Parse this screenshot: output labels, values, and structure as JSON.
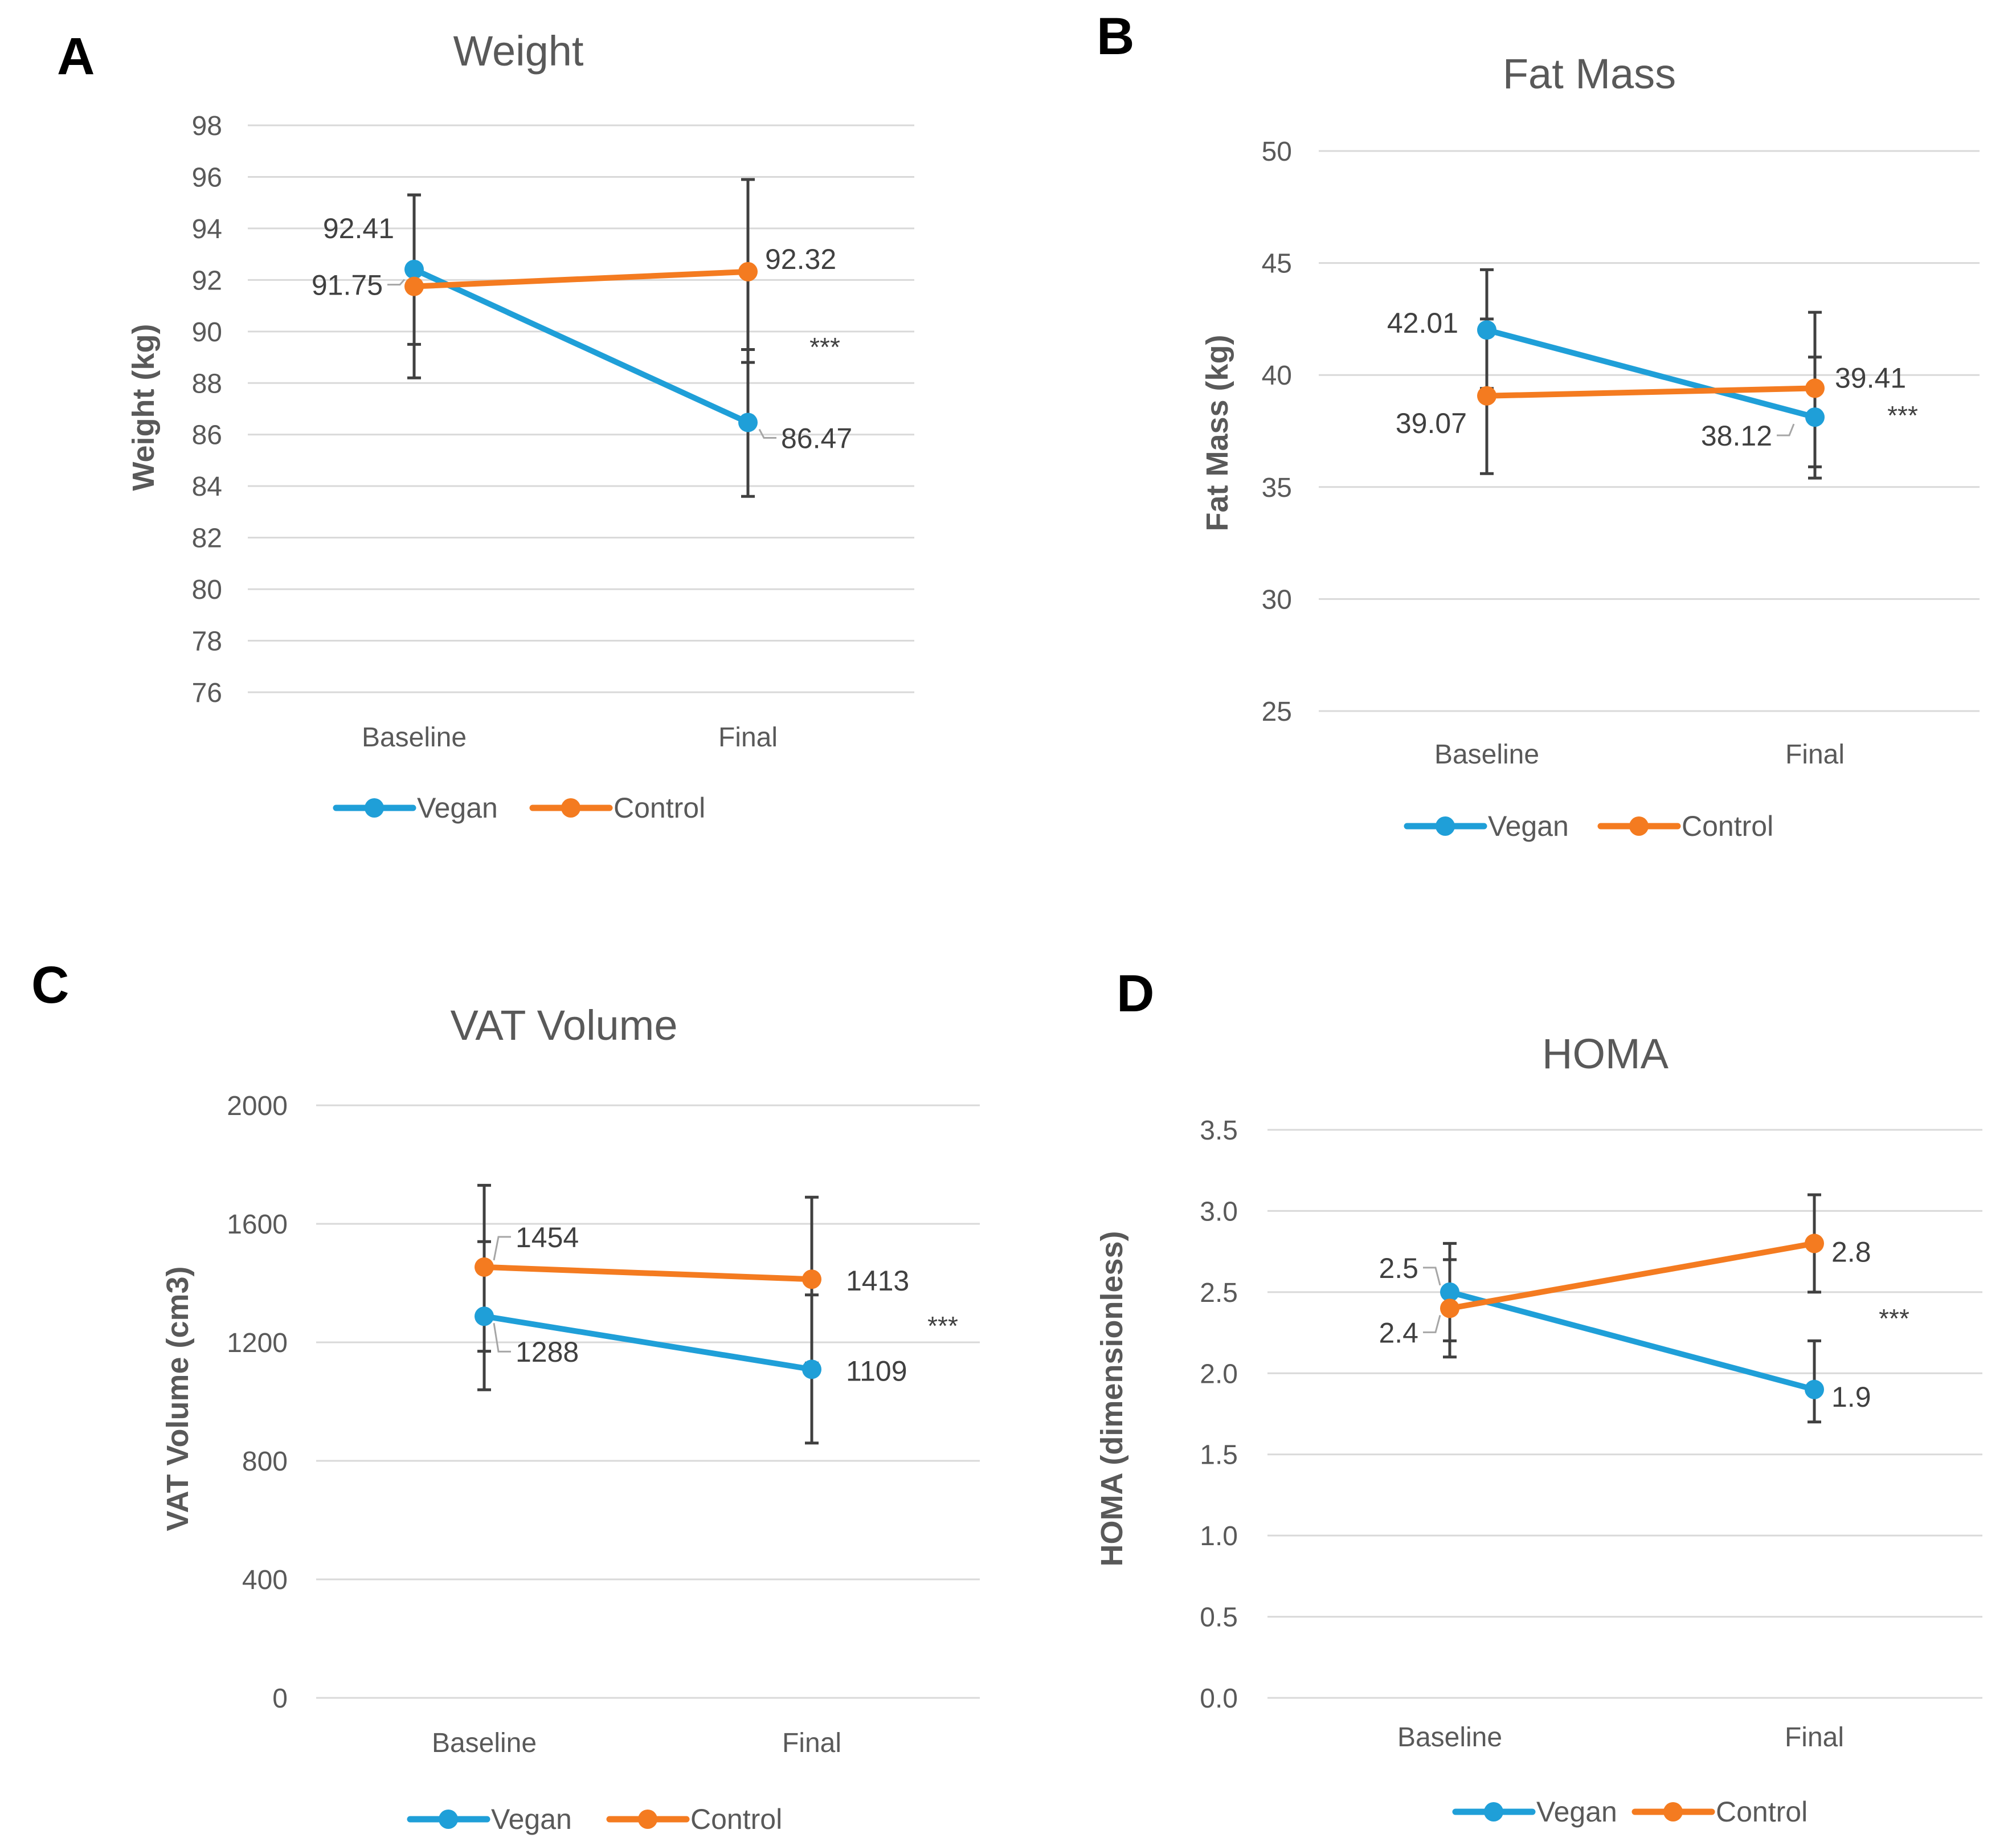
{
  "colors": {
    "vegan": "#1f9fd8",
    "control": "#f47b20"
  },
  "legend": {
    "vegan": "Vegan",
    "control": "Control"
  },
  "chart_data": [
    {
      "panel": "A",
      "type": "line",
      "title": "Weight",
      "ylabel": "Weight (kg)",
      "categories": [
        "Baseline",
        "Final"
      ],
      "ylim": [
        76,
        98
      ],
      "yticks": [
        "76",
        "78",
        "80",
        "82",
        "84",
        "86",
        "88",
        "90",
        "92",
        "94",
        "96",
        "98"
      ],
      "series": [
        {
          "name": "Vegan",
          "values": [
            92.41,
            86.47
          ],
          "err_low": [
            89.5,
            83.6
          ],
          "err_high": [
            95.3,
            89.3
          ],
          "labels": [
            "92.41",
            "86.47"
          ]
        },
        {
          "name": "Control",
          "values": [
            91.75,
            92.32
          ],
          "err_low": [
            88.2,
            88.8
          ],
          "err_high": [
            95.3,
            95.9
          ],
          "labels": [
            "91.75",
            "92.32"
          ]
        }
      ],
      "annotation": "***"
    },
    {
      "panel": "B",
      "type": "line",
      "title": "Fat Mass",
      "ylabel": "Fat Mass (kg)",
      "categories": [
        "Baseline",
        "Final"
      ],
      "ylim": [
        25,
        50
      ],
      "yticks": [
        "25",
        "30",
        "35",
        "40",
        "45",
        "50"
      ],
      "series": [
        {
          "name": "Vegan",
          "values": [
            42.01,
            38.12
          ],
          "err_low": [
            39.4,
            35.4
          ],
          "err_high": [
            44.7,
            40.8
          ],
          "labels": [
            "42.01",
            "38.12"
          ]
        },
        {
          "name": "Control",
          "values": [
            39.07,
            39.41
          ],
          "err_low": [
            35.6,
            35.9
          ],
          "err_high": [
            42.5,
            42.8
          ],
          "labels": [
            "39.07",
            "39.41"
          ]
        }
      ],
      "annotation": "***"
    },
    {
      "panel": "C",
      "type": "line",
      "title": "VAT Volume",
      "ylabel": "VAT Volume (cm3)",
      "categories": [
        "Baseline",
        "Final"
      ],
      "ylim": [
        0,
        2000
      ],
      "yticks": [
        "0",
        "400",
        "800",
        "1200",
        "1600",
        "2000"
      ],
      "series": [
        {
          "name": "Vegan",
          "values": [
            1288,
            1109
          ],
          "err_low": [
            1040,
            860
          ],
          "err_high": [
            1540,
            1360
          ],
          "labels": [
            "1288",
            "1109"
          ]
        },
        {
          "name": "Control",
          "values": [
            1454,
            1413
          ],
          "err_low": [
            1170,
            1130
          ],
          "err_high": [
            1730,
            1690
          ],
          "labels": [
            "1454",
            "1413"
          ]
        }
      ],
      "annotation": "***"
    },
    {
      "panel": "D",
      "type": "line",
      "title": "HOMA",
      "ylabel": "HOMA (dimensionless)",
      "categories": [
        "Baseline",
        "Final"
      ],
      "ylim": [
        0,
        3.5
      ],
      "yticks": [
        "0.0",
        "0.5",
        "1.0",
        "1.5",
        "2.0",
        "2.5",
        "3.0",
        "3.5"
      ],
      "series": [
        {
          "name": "Vegan",
          "values": [
            2.5,
            1.9
          ],
          "err_low": [
            2.2,
            1.7
          ],
          "err_high": [
            2.8,
            2.2
          ],
          "labels": [
            "2.5",
            "1.9"
          ]
        },
        {
          "name": "Control",
          "values": [
            2.4,
            2.8
          ],
          "err_low": [
            2.1,
            2.5
          ],
          "err_high": [
            2.7,
            3.1
          ],
          "labels": [
            "2.4",
            "2.8"
          ]
        }
      ],
      "annotation": "***"
    }
  ]
}
